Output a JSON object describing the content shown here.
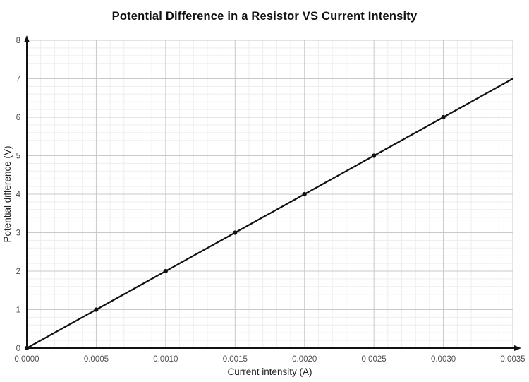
{
  "chart_data": {
    "type": "line",
    "title": "Potential Difference in a Resistor VS Current Intensity",
    "xlabel": "Current intensity (A)",
    "ylabel": "Potential difference (V)",
    "x": [
      0.0,
      0.0005,
      0.001,
      0.0015,
      0.002,
      0.0025,
      0.003,
      0.0035
    ],
    "y": [
      0,
      1,
      2,
      3,
      4,
      5,
      6,
      7
    ],
    "marker_x": [
      0.0,
      0.0005,
      0.001,
      0.0015,
      0.002,
      0.0025,
      0.003
    ],
    "marker_y": [
      0,
      1,
      2,
      3,
      4,
      5,
      6
    ],
    "xlim": [
      0,
      0.0035
    ],
    "ylim": [
      0,
      8
    ],
    "x_ticks": [
      0.0,
      0.0005,
      0.001,
      0.0015,
      0.002,
      0.0025,
      0.003,
      0.0035
    ],
    "x_tick_labels": [
      "0.0000",
      "0.0005",
      "0.0010",
      "0.0015",
      "0.0020",
      "0.0025",
      "0.0030",
      "0.0035"
    ],
    "y_ticks": [
      0,
      1,
      2,
      3,
      4,
      5,
      6,
      7,
      8
    ],
    "y_tick_labels": [
      "0",
      "1",
      "2",
      "3",
      "4",
      "5",
      "6",
      "7",
      "8"
    ],
    "x_minor_step": 0.0001,
    "y_minor_step": 0.2,
    "grid": true,
    "legend": "none",
    "axis_arrows": true,
    "colors": {
      "line": "#111111",
      "marker": "#111111",
      "axis": "#111111",
      "grid_major": "#c9c9c9",
      "grid_minor": "#ededed",
      "tick_label": "#4f4f4f",
      "axis_title": "#222222",
      "title": "#111111",
      "background": "#ffffff"
    }
  }
}
